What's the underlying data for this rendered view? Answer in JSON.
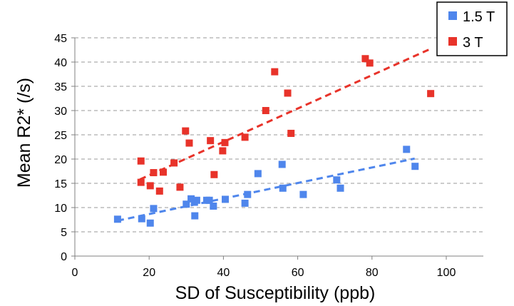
{
  "chart_data": {
    "type": "scatter",
    "title": "",
    "xlabel": "SD of Susceptibility (ppb)",
    "ylabel": "Mean R2* (/s)",
    "xlim": [
      0,
      110
    ],
    "ylim": [
      0,
      45
    ],
    "xticks": [
      0,
      20,
      40,
      60,
      80,
      100
    ],
    "yticks": [
      0,
      5,
      10,
      15,
      20,
      25,
      30,
      35,
      40,
      45
    ],
    "grid": "horizontal dashed",
    "legend_position": "top-right",
    "series": [
      {
        "name": "1.5 T",
        "color": "#4f86ec",
        "marker": "square",
        "points": [
          [
            11.5,
            7.6
          ],
          [
            18,
            7.7
          ],
          [
            20.3,
            6.8
          ],
          [
            21.2,
            9.8
          ],
          [
            30,
            10.7
          ],
          [
            31.3,
            11.8
          ],
          [
            32.2,
            11.1
          ],
          [
            32.3,
            8.3
          ],
          [
            32.8,
            11.5
          ],
          [
            35.5,
            11.5
          ],
          [
            36.2,
            11.5
          ],
          [
            37.3,
            10.3
          ],
          [
            40.5,
            11.7
          ],
          [
            45.8,
            10.9
          ],
          [
            46.5,
            12.7
          ],
          [
            49.3,
            17
          ],
          [
            55.8,
            18.9
          ],
          [
            56,
            14
          ],
          [
            61.5,
            12.7
          ],
          [
            70.5,
            15.7
          ],
          [
            71.5,
            14
          ],
          [
            89.3,
            22
          ],
          [
            91.6,
            18.5
          ]
        ],
        "trendline": {
          "x_start": 11.5,
          "y_start": 7.3,
          "x_end": 91.5,
          "y_end": 20.1
        }
      },
      {
        "name": "3 T",
        "color": "#e8332a",
        "marker": "square",
        "points": [
          [
            17.8,
            19.6
          ],
          [
            17.8,
            15.2
          ],
          [
            20.3,
            14.5
          ],
          [
            21.2,
            17.2
          ],
          [
            22.8,
            13.4
          ],
          [
            23.8,
            17.3
          ],
          [
            26.7,
            19.2
          ],
          [
            28.3,
            14.2
          ],
          [
            29.8,
            25.8
          ],
          [
            30.8,
            23.3
          ],
          [
            36.5,
            23.8
          ],
          [
            37.5,
            16.8
          ],
          [
            39.8,
            21.7
          ],
          [
            40.4,
            23.4
          ],
          [
            45.8,
            24.5
          ],
          [
            51.4,
            30
          ],
          [
            53.8,
            38
          ],
          [
            57.3,
            33.6
          ],
          [
            58.2,
            25.3
          ],
          [
            78.2,
            40.7
          ],
          [
            79.4,
            39.8
          ],
          [
            95.8,
            33.5
          ]
        ],
        "trendline": {
          "x_start": 17.5,
          "y_start": 15.8,
          "x_end": 96,
          "y_end": 42.8
        }
      }
    ]
  }
}
